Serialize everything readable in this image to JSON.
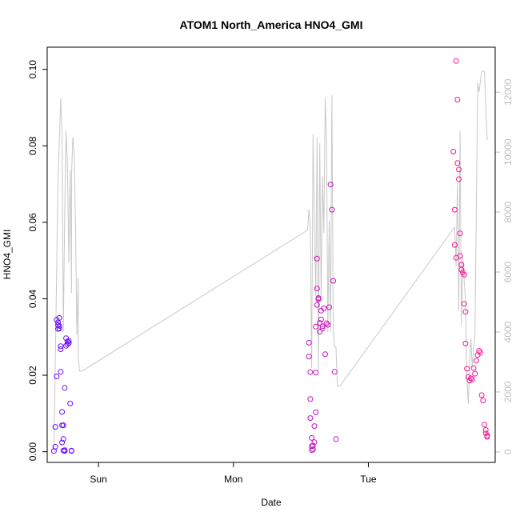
{
  "chart_data": {
    "type": "scatter",
    "title": "ATOM1 North_America HNO4_GMI",
    "xlabel": "Date",
    "ylabel": "HNO4_GMI",
    "x_unit": "day",
    "x_ticks": [
      {
        "value": 1.0,
        "label": "Sun"
      },
      {
        "value": 2.0,
        "label": "Mon"
      },
      {
        "value": 3.0,
        "label": "Tue"
      }
    ],
    "xlim": [
      0.62,
      3.94
    ],
    "ylim": [
      -0.0028,
      0.1058
    ],
    "y_ticks": [
      0.0,
      0.02,
      0.04,
      0.06,
      0.08,
      0.1
    ],
    "y_tick_labels": [
      "0.00",
      "0.02",
      "0.04",
      "0.06",
      "0.08",
      "0.10"
    ],
    "y2_lim": [
      -350,
      13500
    ],
    "y2_ticks": [
      0,
      2000,
      4000,
      6000,
      8000,
      10000,
      12000
    ],
    "y2_tick_labels": [
      "0",
      "2000",
      "4000",
      "6000",
      "8000",
      "10000",
      "12000"
    ],
    "line_color": "#c8c8c8",
    "colors": {
      "start": "#6a0dff",
      "end": "#ff1493"
    },
    "altitude_line": {
      "x": [
        0.67,
        0.7,
        0.72,
        0.73,
        0.74,
        0.75,
        0.76,
        0.77,
        0.78,
        0.79,
        0.8,
        0.8,
        0.81,
        0.82,
        0.83,
        0.84,
        0.85,
        0.85,
        0.86,
        0.87,
        0.88,
        2.55,
        2.56,
        2.57,
        2.58,
        2.59,
        2.6,
        2.61,
        2.62,
        2.63,
        2.64,
        2.65,
        2.66,
        2.67,
        2.68,
        2.69,
        2.7,
        2.71,
        2.72,
        2.73,
        2.74,
        2.75,
        2.76,
        2.77,
        2.78,
        2.79,
        3.64,
        3.65,
        3.66,
        3.67,
        3.68,
        3.69,
        3.7,
        3.72,
        3.73,
        3.74,
        3.75,
        3.76,
        3.77,
        3.78,
        3.79,
        3.81,
        3.82,
        3.84,
        3.86,
        3.88
      ],
      "y": [
        0,
        9000,
        11800,
        10500,
        4000,
        8000,
        10700,
        9600,
        6300,
        9400,
        5300,
        9200,
        10500,
        10000,
        7500,
        3900,
        5800,
        3200,
        2700,
        2700,
        2700,
        7400,
        8100,
        7500,
        2800,
        10600,
        7800,
        5200,
        10500,
        2700,
        10300,
        5000,
        9200,
        7300,
        11800,
        10300,
        4000,
        7700,
        4000,
        11900,
        4000,
        3500,
        3500,
        2200,
        2200,
        2200,
        7500,
        6200,
        9000,
        4700,
        10700,
        4200,
        6500,
        5000,
        2500,
        1600,
        3000,
        3800,
        2800,
        3500,
        3900,
        12300,
        12000,
        12700,
        12700,
        10400
      ]
    },
    "series": [
      {
        "x": [
          0.67,
          0.68,
          0.68,
          0.69,
          0.69,
          0.7,
          0.7,
          0.7,
          0.71,
          0.71,
          0.71,
          0.72,
          0.72,
          0.72,
          0.73,
          0.73,
          0.73,
          0.74,
          0.74,
          0.74,
          0.75,
          0.75,
          0.75,
          0.76,
          0.76,
          0.77,
          0.77,
          0.78,
          0.78,
          0.79,
          0.8,
          0.8
        ],
        "y": [
          0.0002,
          0.0013,
          0.0065,
          0.0197,
          0.0345,
          0.0338,
          0.0331,
          0.0321,
          0.035,
          0.0329,
          0.0322,
          0.0276,
          0.0268,
          0.0209,
          0.0104,
          0.0069,
          0.0024,
          0.0069,
          0.0033,
          0.0003,
          0.0002,
          0.0004,
          0.0167,
          0.0297,
          0.0277,
          0.0288,
          0.0281,
          0.0284,
          0.029,
          0.0126,
          0.0003,
          0.0002
        ]
      },
      {
        "x": [
          2.56,
          2.56,
          2.57,
          2.57,
          2.57,
          2.58,
          2.58,
          2.58,
          2.59,
          2.59,
          2.6,
          2.6,
          2.61,
          2.61,
          2.61,
          2.62,
          2.62,
          2.62,
          2.63,
          2.63,
          2.64,
          2.64,
          2.65,
          2.65,
          2.66,
          2.66,
          2.67,
          2.68,
          2.69,
          2.7,
          2.71,
          2.72,
          2.73,
          2.74,
          2.75,
          2.76
        ],
        "y": [
          0.0285,
          0.0249,
          0.0208,
          0.0138,
          0.0088,
          0.0036,
          0.0014,
          0.0004,
          0.0016,
          0.0006,
          0.0025,
          0.0067,
          0.0103,
          0.0207,
          0.0327,
          0.0384,
          0.0505,
          0.0427,
          0.0399,
          0.0402,
          0.0337,
          0.0314,
          0.0369,
          0.0346,
          0.0328,
          0.0322,
          0.0375,
          0.0255,
          0.0336,
          0.0332,
          0.0378,
          0.0699,
          0.0633,
          0.0447,
          0.0209,
          0.0033
        ]
      },
      {
        "x": [
          3.63,
          3.64,
          3.64,
          3.65,
          3.65,
          3.66,
          3.66,
          3.67,
          3.67,
          3.68,
          3.68,
          3.69,
          3.69,
          3.7,
          3.71,
          3.71,
          3.72,
          3.72,
          3.73,
          3.74,
          3.75,
          3.76,
          3.77,
          3.78,
          3.79,
          3.8,
          3.81,
          3.82,
          3.83,
          3.84,
          3.85,
          3.86,
          3.87,
          3.87,
          3.88,
          3.88
        ],
        "y": [
          0.0785,
          0.0633,
          0.0541,
          0.1022,
          0.0507,
          0.0921,
          0.0755,
          0.0738,
          0.0713,
          0.0571,
          0.0512,
          0.0489,
          0.0476,
          0.0469,
          0.0463,
          0.0387,
          0.0366,
          0.0283,
          0.0217,
          0.0195,
          0.0186,
          0.0192,
          0.0189,
          0.0219,
          0.0204,
          0.0238,
          0.0253,
          0.0264,
          0.0259,
          0.0148,
          0.0134,
          0.0071,
          0.0057,
          0.0048,
          0.0042,
          0.0039
        ]
      }
    ]
  }
}
